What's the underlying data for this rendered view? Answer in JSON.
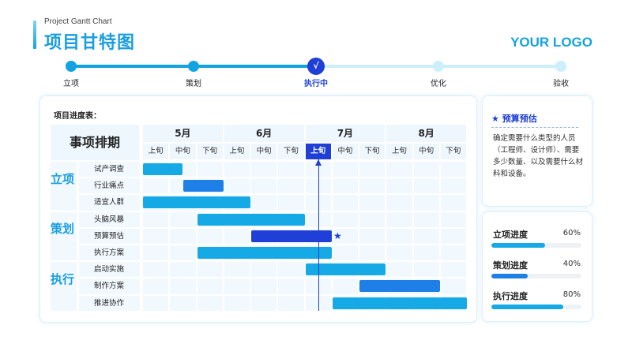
{
  "header": {
    "subtitle": "Project Gantt Chart",
    "title": "项目甘特图",
    "logo": "YOUR LOGO"
  },
  "stepper": {
    "steps": [
      {
        "label": "立项",
        "status": "done"
      },
      {
        "label": "策划",
        "status": "done"
      },
      {
        "label": "执行中",
        "status": "current"
      },
      {
        "label": "优化",
        "status": "todo"
      },
      {
        "label": "验收",
        "status": "todo"
      }
    ],
    "current_mark": "√"
  },
  "gantt": {
    "caption": "项目进度表：",
    "corner_label": "事项排期",
    "months": [
      "5月",
      "6月",
      "7月",
      "8月"
    ],
    "periods": [
      "上旬",
      "中旬",
      "下旬",
      "上旬",
      "中旬",
      "下旬",
      "上旬",
      "中旬",
      "下旬",
      "上旬",
      "中旬",
      "下旬"
    ],
    "current_period_index": 6,
    "star_mark": "★",
    "phases": [
      {
        "label": "立项",
        "tasks": [
          {
            "name": "试产调查",
            "start": 0,
            "end": 1.5,
            "color": "#15a9e6"
          },
          {
            "name": "行业痛点",
            "start": 1.5,
            "end": 3.0,
            "color": "#1e7fe6"
          },
          {
            "name": "适宜人群",
            "start": 0,
            "end": 4.0,
            "color": "#15a9e6"
          }
        ]
      },
      {
        "label": "策划",
        "tasks": [
          {
            "name": "头脑风暴",
            "start": 2.0,
            "end": 6.0,
            "color": "#15a9e6"
          },
          {
            "name": "预算预估",
            "start": 4.0,
            "end": 7.0,
            "color": "#1f3fd6",
            "starred": true
          },
          {
            "name": "执行方案",
            "start": 2.0,
            "end": 7.0,
            "color": "#15a9e6"
          }
        ]
      },
      {
        "label": "执行",
        "tasks": [
          {
            "name": "启动实施",
            "start": 6.0,
            "end": 9.0,
            "color": "#15a9e6"
          },
          {
            "name": "制作方案",
            "start": 8.0,
            "end": 11.0,
            "color": "#1e7fe6"
          },
          {
            "name": "推进协作",
            "start": 7.0,
            "end": 12.0,
            "color": "#15a9e6"
          }
        ]
      }
    ]
  },
  "budget": {
    "star": "★",
    "title": "预算预估",
    "body": "确定需要什么类型的人员（工程师、设计师）、需要多少数量、以及需要什么材料和设备。"
  },
  "progress": [
    {
      "label": "立项进度",
      "percent": 60,
      "percent_text": "60%",
      "color": "#15a9e6"
    },
    {
      "label": "策划进度",
      "percent": 40,
      "percent_text": "40%",
      "color": "#1e7fe6"
    },
    {
      "label": "执行进度",
      "percent": 80,
      "percent_text": "80%",
      "color": "#15a9e6"
    }
  ]
}
